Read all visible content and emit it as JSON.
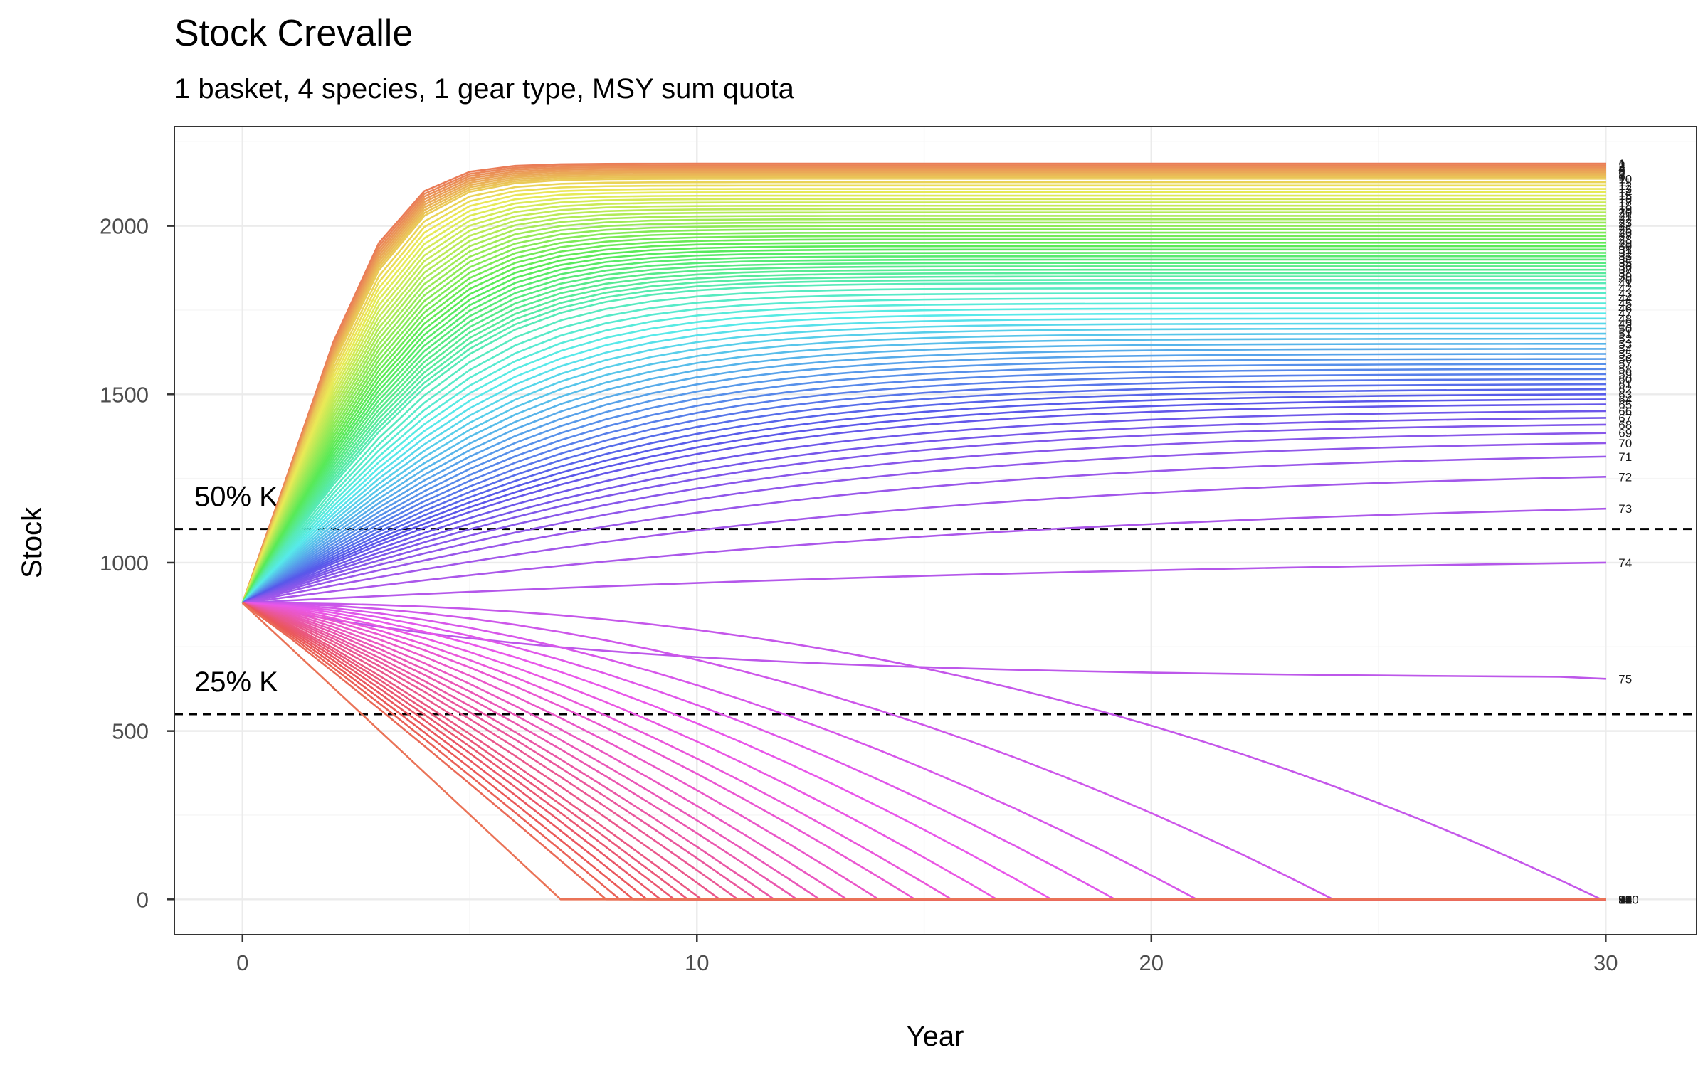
{
  "chart_data": {
    "type": "line",
    "title": "Stock Crevalle",
    "subtitle": "1 basket, 4 species, 1 gear type, MSY sum quota",
    "xlabel": "Year",
    "ylabel": "Stock",
    "xlim": [
      -1.5,
      32
    ],
    "ylim": [
      -105,
      2295
    ],
    "x_ticks": [
      0,
      10,
      20,
      30
    ],
    "y_ticks": [
      0,
      500,
      1000,
      1500,
      2000
    ],
    "x_tick_labels": [
      "0",
      "10",
      "20",
      "30"
    ],
    "y_tick_labels": [
      "0",
      "500",
      "1000",
      "1500",
      "2000"
    ],
    "grid": true,
    "legend": "none",
    "initial_stock": 880,
    "carrying_capacity_K": 2200,
    "reference_lines": [
      {
        "label": "50% K",
        "y": 1100
      },
      {
        "label": "25% K",
        "y": 550
      }
    ],
    "scenario_count": 100,
    "final_year": 30,
    "final_stock_by_scenario": [
      2185,
      2180,
      2175,
      2170,
      2165,
      2160,
      2155,
      2150,
      2145,
      2140,
      2130,
      2120,
      2110,
      2100,
      2090,
      2080,
      2070,
      2060,
      2050,
      2040,
      2030,
      2020,
      2010,
      2000,
      1990,
      1980,
      1970,
      1960,
      1950,
      1940,
      1930,
      1920,
      1910,
      1900,
      1890,
      1880,
      1870,
      1860,
      1850,
      1840,
      1830,
      1815,
      1800,
      1785,
      1770,
      1755,
      1740,
      1725,
      1710,
      1695,
      1680,
      1665,
      1650,
      1635,
      1620,
      1605,
      1590,
      1575,
      1560,
      1545,
      1530,
      1515,
      1500,
      1485,
      1470,
      1450,
      1430,
      1410,
      1385,
      1355,
      1315,
      1255,
      1160,
      1000,
      655,
      0,
      0,
      0,
      0,
      0,
      0,
      0,
      0,
      0,
      0,
      0,
      0,
      0,
      0,
      0,
      0,
      0,
      0,
      0,
      0,
      0,
      0,
      0,
      0,
      0
    ],
    "end_labels": [
      "1",
      "2",
      "3",
      "4",
      "5",
      "6",
      "7",
      "8",
      "9",
      "10",
      "11",
      "12",
      "13",
      "14",
      "15",
      "16",
      "17",
      "18",
      "19",
      "20",
      "21",
      "22",
      "23",
      "24",
      "25",
      "26",
      "27",
      "28",
      "29",
      "30",
      "31",
      "32",
      "33",
      "34",
      "35",
      "36",
      "37",
      "38",
      "39",
      "40",
      "41",
      "42",
      "43",
      "44",
      "45",
      "46",
      "47",
      "48",
      "49",
      "50",
      "51",
      "52",
      "53",
      "54",
      "55",
      "56",
      "57",
      "58",
      "59",
      "60",
      "61",
      "62",
      "63",
      "64",
      "65",
      "66",
      "67",
      "68",
      "69",
      "70",
      "71",
      "72",
      "73",
      "74",
      "75",
      "76",
      "77",
      "78",
      "79",
      "80",
      "81",
      "82",
      "83",
      "84",
      "85",
      "86",
      "87",
      "88",
      "89",
      "90",
      "91",
      "92",
      "93",
      "94",
      "95",
      "96",
      "97",
      "98",
      "99",
      "100"
    ],
    "collapse_year_by_scenario": {
      "76": 29.9,
      "77": 24,
      "78": 21,
      "79": 19.2,
      "80": 17.8,
      "81": 16.6,
      "82": 15.6,
      "83": 14.8,
      "84": 14.0,
      "85": 13.3,
      "86": 12.7,
      "87": 12.2,
      "88": 11.7,
      "89": 11.3,
      "90": 10.9,
      "91": 10.5,
      "92": 10.1,
      "93": 9.8,
      "94": 9.5,
      "95": 9.2,
      "96": 8.9,
      "97": 8.6,
      "98": 8.3,
      "99": 8.0,
      "100": 7.0
    },
    "palette_hue_start": 15,
    "palette_hue_end": 375
  }
}
